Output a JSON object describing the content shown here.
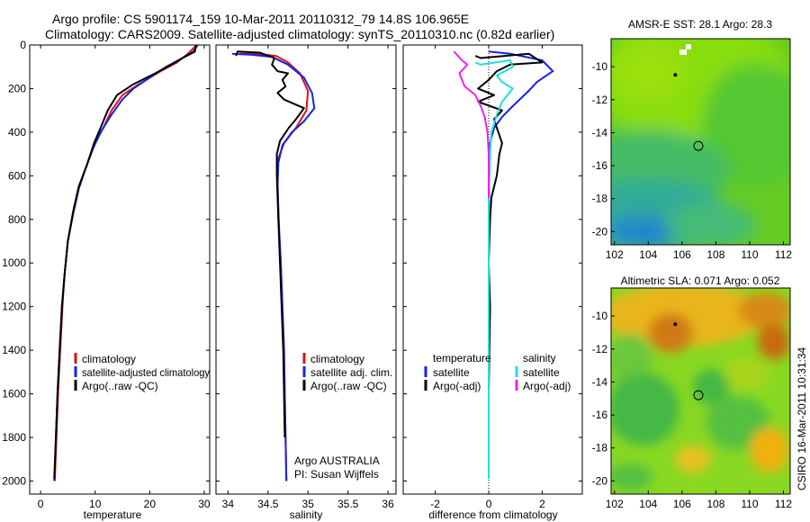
{
  "header": {
    "line1": "Argo profile: CS 5901174_159 10-Mar-2011 20110312_79 14.8S 106.965E",
    "line2": "Climatology: CARS2009. Satellite-adjusted climatology: synTS_20110310.nc (0.82d earlier)"
  },
  "side_label": "CSIRO 16-Mar-2011 10:31:34",
  "colors": {
    "climatology": "#dd1111",
    "satellite": "#1122ee",
    "argo": "#000000",
    "salinity_satellite": "#22dddd",
    "salinity_argo": "#ee22ee",
    "zero_line": "#000000"
  },
  "chart_data": [
    {
      "id": "temperature",
      "type": "line",
      "xlabel": "temperature",
      "ylabel": "",
      "xlim": [
        -2,
        31
      ],
      "ylim": [
        2060,
        0
      ],
      "xticks": [
        "0",
        "10",
        "20",
        "30"
      ],
      "xtick_values": [
        0,
        10,
        20,
        30
      ],
      "yticks": [
        "0",
        "200",
        "400",
        "600",
        "800",
        "1000",
        "1200",
        "1400",
        "1600",
        "1800",
        "2000"
      ],
      "ytick_values": [
        0,
        200,
        400,
        600,
        800,
        1000,
        1200,
        1400,
        1600,
        1800,
        2000
      ],
      "legend": [
        "climatology",
        "satellite-adjusted climatology",
        "Argo(..raw -QC)"
      ],
      "series": [
        {
          "name": "climatology",
          "color_key": "climatology",
          "points": [
            [
              28.6,
              0
            ],
            [
              27,
              40
            ],
            [
              25,
              80
            ],
            [
              22,
              120
            ],
            [
              18,
              180
            ],
            [
              15,
              230
            ],
            [
              13,
              300
            ],
            [
              11.5,
              380
            ],
            [
              10,
              450
            ],
            [
              8.5,
              550
            ],
            [
              7,
              650
            ],
            [
              6,
              760
            ],
            [
              5,
              900
            ],
            [
              4.4,
              1050
            ],
            [
              4,
              1200
            ],
            [
              3.6,
              1400
            ],
            [
              3.2,
              1600
            ],
            [
              2.9,
              1800
            ],
            [
              2.6,
              2000
            ]
          ]
        },
        {
          "name": "satellite-adjusted climatology",
          "color_key": "satellite",
          "points": [
            [
              28.8,
              0
            ],
            [
              28,
              30
            ],
            [
              26,
              60
            ],
            [
              23,
              100
            ],
            [
              20,
              150
            ],
            [
              17,
              200
            ],
            [
              15,
              250
            ],
            [
              13,
              320
            ],
            [
              11,
              400
            ],
            [
              9.5,
              480
            ],
            [
              8.2,
              570
            ],
            [
              7,
              660
            ],
            [
              6,
              770
            ],
            [
              5,
              900
            ],
            [
              4.4,
              1050
            ],
            [
              3.9,
              1200
            ],
            [
              3.5,
              1400
            ],
            [
              3.1,
              1600
            ],
            [
              2.8,
              1800
            ],
            [
              2.5,
              2000
            ]
          ]
        },
        {
          "name": "Argo(..raw -QC)",
          "color_key": "argo",
          "points": [
            [
              28.5,
              0
            ],
            [
              28.3,
              30
            ],
            [
              26,
              60
            ],
            [
              24,
              90
            ],
            [
              21,
              130
            ],
            [
              17,
              180
            ],
            [
              14,
              230
            ],
            [
              12.3,
              300
            ],
            [
              11,
              380
            ],
            [
              9.8,
              450
            ],
            [
              8.5,
              550
            ],
            [
              7,
              650
            ],
            [
              6,
              760
            ],
            [
              5,
              900
            ],
            [
              4.4,
              1050
            ],
            [
              3.9,
              1200
            ],
            [
              3.5,
              1400
            ],
            [
              3.1,
              1600
            ],
            [
              2.8,
              1800
            ],
            [
              2.5,
              1990
            ]
          ]
        }
      ]
    },
    {
      "id": "salinity",
      "type": "line",
      "xlabel": "salinity",
      "ylabel": "",
      "xlim": [
        33.85,
        36.1
      ],
      "ylim": [
        2060,
        0
      ],
      "xticks": [
        "34",
        "34.5",
        "35",
        "35.5",
        "36"
      ],
      "xtick_values": [
        34,
        34.5,
        35,
        35.5,
        36
      ],
      "legend": [
        "climatology",
        "satellite adj. clim.",
        "Argo(..raw -QC)"
      ],
      "annotations": [
        "Argo AUSTRALIA",
        "PI: Susan Wijffels"
      ],
      "series": [
        {
          "name": "climatology",
          "color_key": "climatology",
          "points": [
            [
              34.15,
              40
            ],
            [
              34.35,
              40
            ],
            [
              34.6,
              50
            ],
            [
              34.75,
              80
            ],
            [
              34.9,
              130
            ],
            [
              35.0,
              210
            ],
            [
              34.98,
              300
            ],
            [
              34.85,
              380
            ],
            [
              34.7,
              450
            ],
            [
              34.63,
              520
            ],
            [
              34.62,
              600
            ],
            [
              34.63,
              800
            ],
            [
              34.66,
              1000
            ],
            [
              34.68,
              1200
            ],
            [
              34.7,
              1400
            ],
            [
              34.71,
              1600
            ],
            [
              34.72,
              1800
            ],
            [
              34.73,
              2000
            ]
          ]
        },
        {
          "name": "satellite adj. clim.",
          "color_key": "satellite",
          "points": [
            [
              34.05,
              40
            ],
            [
              34.3,
              45
            ],
            [
              34.55,
              55
            ],
            [
              34.75,
              90
            ],
            [
              34.95,
              150
            ],
            [
              35.05,
              220
            ],
            [
              35.08,
              290
            ],
            [
              34.95,
              350
            ],
            [
              34.8,
              400
            ],
            [
              34.68,
              460
            ],
            [
              34.63,
              540
            ],
            [
              34.62,
              650
            ],
            [
              34.64,
              850
            ],
            [
              34.66,
              1000
            ],
            [
              34.68,
              1200
            ],
            [
              34.7,
              1400
            ],
            [
              34.71,
              1600
            ],
            [
              34.72,
              1800
            ],
            [
              34.73,
              2000
            ]
          ]
        },
        {
          "name": "Argo(..raw -QC)",
          "color_key": "argo",
          "points": [
            [
              34.1,
              50
            ],
            [
              34.12,
              30
            ],
            [
              34.4,
              35
            ],
            [
              34.58,
              60
            ],
            [
              34.55,
              90
            ],
            [
              34.62,
              120
            ],
            [
              34.75,
              130
            ],
            [
              34.68,
              160
            ],
            [
              34.72,
              190
            ],
            [
              34.62,
              220
            ],
            [
              34.7,
              250
            ],
            [
              34.95,
              290
            ],
            [
              34.85,
              340
            ],
            [
              34.76,
              380
            ],
            [
              34.65,
              440
            ],
            [
              34.61,
              500
            ],
            [
              34.61,
              600
            ],
            [
              34.63,
              800
            ],
            [
              34.65,
              1000
            ],
            [
              34.67,
              1200
            ],
            [
              34.69,
              1400
            ],
            [
              34.7,
              1600
            ],
            [
              34.71,
              1800
            ]
          ]
        }
      ]
    },
    {
      "id": "difference",
      "type": "line",
      "xlabel": "difference from climatology",
      "ylabel": "",
      "xlim": [
        -3.2,
        3.5
      ],
      "ylim": [
        2060,
        0
      ],
      "xticks": [
        "-2",
        "0",
        "2"
      ],
      "xtick_values": [
        -2,
        0,
        2
      ],
      "legend_temperature": {
        "heading": "temperature",
        "entries": [
          "satellite",
          "Argo(-adj)"
        ]
      },
      "legend_salinity": {
        "heading": "salinity",
        "entries": [
          "satellite",
          "Argo(-adj)"
        ]
      },
      "series": [
        {
          "name": "temperature satellite",
          "color_key": "satellite",
          "points": [
            [
              0,
              30
            ],
            [
              0.8,
              40
            ],
            [
              2,
              70
            ],
            [
              2.4,
              120
            ],
            [
              1.8,
              170
            ],
            [
              1.5,
              210
            ],
            [
              0.9,
              280
            ],
            [
              0.5,
              330
            ],
            [
              0.2,
              380
            ],
            [
              0.05,
              450
            ],
            [
              0.02,
              600
            ],
            [
              0.0,
              800
            ],
            [
              0.0,
              1200
            ],
            [
              0.0,
              1600
            ],
            [
              0.0,
              1990
            ]
          ]
        },
        {
          "name": "temperature Argo(-adj)",
          "color_key": "argo",
          "points": [
            [
              -0.5,
              50
            ],
            [
              -0.3,
              60
            ],
            [
              1.5,
              40
            ],
            [
              2.0,
              80
            ],
            [
              0.8,
              90
            ],
            [
              0.3,
              120
            ],
            [
              0.0,
              160
            ],
            [
              -0.4,
              200
            ],
            [
              0.2,
              230
            ],
            [
              -0.4,
              260
            ],
            [
              0.5,
              300
            ],
            [
              0.2,
              340
            ],
            [
              0.3,
              380
            ],
            [
              0.5,
              450
            ],
            [
              0.4,
              500
            ],
            [
              0.3,
              600
            ],
            [
              0.1,
              700
            ],
            [
              0.05,
              800
            ],
            [
              0.0,
              1000
            ],
            [
              0.05,
              1200
            ],
            [
              0.0,
              1600
            ],
            [
              0.0,
              1980
            ]
          ]
        },
        {
          "name": "salinity satellite",
          "color_key": "salinity_satellite",
          "points": [
            [
              -0.5,
              80
            ],
            [
              -0.3,
              90
            ],
            [
              0.8,
              70
            ],
            [
              0.9,
              100
            ],
            [
              0.3,
              140
            ],
            [
              0.5,
              170
            ],
            [
              0.9,
              200
            ],
            [
              0.5,
              260
            ],
            [
              0.3,
              320
            ],
            [
              0.1,
              400
            ],
            [
              0.05,
              500
            ],
            [
              0.0,
              700
            ],
            [
              0.0,
              900
            ],
            [
              0.0,
              1200
            ],
            [
              0.0,
              1600
            ],
            [
              0.0,
              1990
            ]
          ]
        },
        {
          "name": "salinity Argo(-adj)",
          "color_key": "salinity_argo",
          "points": [
            [
              -1.3,
              30
            ],
            [
              -1.0,
              70
            ],
            [
              -0.8,
              90
            ],
            [
              -1.1,
              130
            ],
            [
              -0.9,
              190
            ],
            [
              -0.5,
              230
            ],
            [
              -0.3,
              280
            ],
            [
              -0.15,
              330
            ],
            [
              -0.05,
              400
            ],
            [
              0.0,
              500
            ],
            [
              0.0,
              700
            ]
          ]
        }
      ]
    },
    {
      "id": "sst_map",
      "type": "heatmap",
      "title": "AMSR-E SST: 28.1 Argo: 28.3",
      "xticks": [
        "102",
        "104",
        "106",
        "108",
        "110",
        "112"
      ],
      "xtick_values": [
        102,
        104,
        106,
        108,
        110,
        112
      ],
      "yticks": [
        "-10",
        "-12",
        "-14",
        "-16",
        "-18",
        "-20"
      ],
      "ytick_values": [
        -10,
        -12,
        -14,
        -16,
        -18,
        -20
      ],
      "xlim": [
        101.8,
        112.4
      ],
      "ylim": [
        -20.8,
        -8.3
      ],
      "float_position": [
        106.965,
        -14.8
      ],
      "previous_position": [
        105.6,
        -10.5
      ]
    },
    {
      "id": "sla_map",
      "type": "heatmap",
      "title": "Altimetric SLA: 0.071 Argo: 0.052",
      "xticks": [
        "102",
        "104",
        "106",
        "108",
        "110",
        "112"
      ],
      "xtick_values": [
        102,
        104,
        106,
        108,
        110,
        112
      ],
      "yticks": [
        "-10",
        "-12",
        "-14",
        "-16",
        "-18",
        "-20"
      ],
      "ytick_values": [
        -10,
        -12,
        -14,
        -16,
        -18,
        -20
      ],
      "xlim": [
        101.8,
        112.4
      ],
      "ylim": [
        -20.8,
        -8.3
      ],
      "float_position": [
        106.965,
        -14.8
      ],
      "previous_position": [
        105.6,
        -10.5
      ]
    }
  ]
}
